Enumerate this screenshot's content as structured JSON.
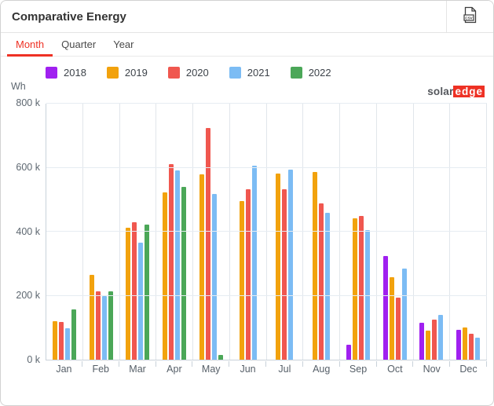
{
  "header": {
    "title": "Comparative Energy"
  },
  "tabs": [
    {
      "label": "Month",
      "active": true
    },
    {
      "label": "Quarter",
      "active": false
    },
    {
      "label": "Year",
      "active": false
    }
  ],
  "brand": {
    "solar": "solar",
    "edge": "edge",
    "red": "#ee3124"
  },
  "chart_data": {
    "type": "bar",
    "title": "Comparative Energy",
    "unit_label": "Wh",
    "categories": [
      "Jan",
      "Feb",
      "Mar",
      "Apr",
      "May",
      "Jun",
      "Jul",
      "Aug",
      "Sep",
      "Oct",
      "Nov",
      "Dec"
    ],
    "series": [
      {
        "name": "2018",
        "color": "#A020F0",
        "values": [
          null,
          null,
          null,
          null,
          null,
          null,
          null,
          null,
          47000,
          322000,
          114000,
          92000
        ]
      },
      {
        "name": "2019",
        "color": "#F2A20D",
        "values": [
          120000,
          265000,
          410000,
          520000,
          578000,
          493000,
          579000,
          584000,
          440000,
          256000,
          90000,
          101000
        ]
      },
      {
        "name": "2020",
        "color": "#F0574F",
        "values": [
          118000,
          213000,
          428000,
          608000,
          722000,
          531000,
          532000,
          487000,
          447000,
          194000,
          124000,
          81000
        ]
      },
      {
        "name": "2021",
        "color": "#7CBCF4",
        "values": [
          97000,
          199000,
          364000,
          590000,
          517000,
          605000,
          592000,
          458000,
          403000,
          283000,
          140000,
          68000
        ]
      },
      {
        "name": "2022",
        "color": "#4BA758",
        "values": [
          157000,
          212000,
          420000,
          538000,
          15000,
          null,
          null,
          null,
          null,
          null,
          null,
          null
        ]
      }
    ],
    "ylim": [
      0,
      800000
    ],
    "ytick_labels": [
      "0 k",
      "200 k",
      "400 k",
      "600 k",
      "800 k"
    ],
    "grid": true,
    "legend_position": "top"
  }
}
